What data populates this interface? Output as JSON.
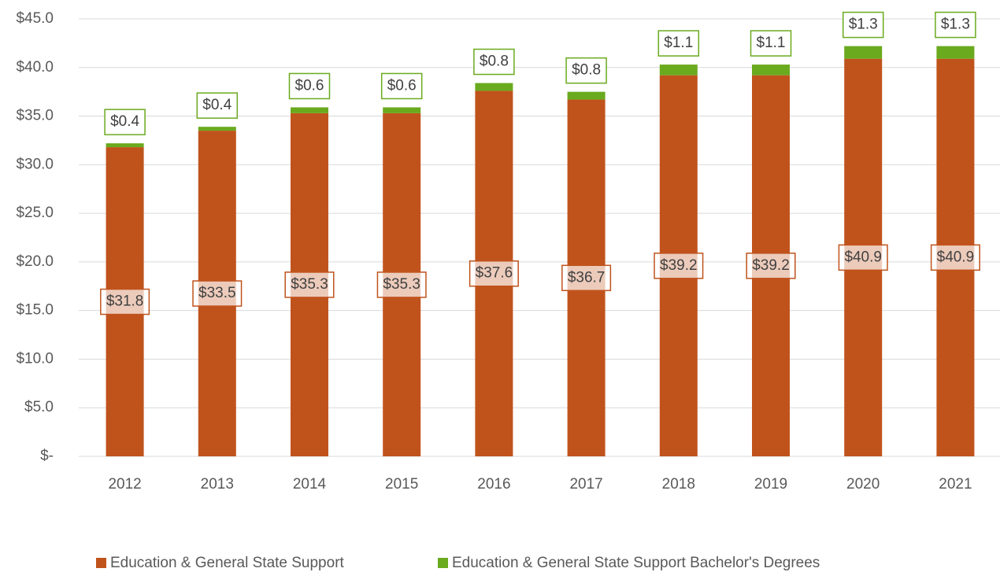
{
  "chart_data": {
    "type": "stacked_bar",
    "categories": [
      "2012",
      "2013",
      "2014",
      "2015",
      "2016",
      "2017",
      "2018",
      "2019",
      "2020",
      "2021"
    ],
    "series": [
      {
        "name": "Education & General State Support",
        "color": "#c0531c",
        "values": [
          31.8,
          33.5,
          35.3,
          35.3,
          37.6,
          36.7,
          39.2,
          39.2,
          40.9,
          40.9
        ],
        "value_labels": [
          "$31.8",
          "$33.5",
          "$35.3",
          "$35.3",
          "$37.6",
          "$36.7",
          "$39.2",
          "$39.2",
          "$40.9",
          "$40.9"
        ]
      },
      {
        "name": "Education & General State Support Bachelor's Degrees",
        "color": "#6aaa1e",
        "values": [
          0.4,
          0.4,
          0.6,
          0.6,
          0.8,
          0.8,
          1.1,
          1.1,
          1.3,
          1.3
        ],
        "value_labels": [
          "$0.4",
          "$0.4",
          "$0.6",
          "$0.6",
          "$0.8",
          "$0.8",
          "$1.1",
          "$1.1",
          "$1.3",
          "$1.3"
        ]
      }
    ],
    "ylim": [
      0,
      45
    ],
    "yticks": [
      {
        "value": 0,
        "label": "$-"
      },
      {
        "value": 5,
        "label": "$5.0"
      },
      {
        "value": 10,
        "label": "$10.0"
      },
      {
        "value": 15,
        "label": "$15.0"
      },
      {
        "value": 20,
        "label": "$20.0"
      },
      {
        "value": 25,
        "label": "$25.0"
      },
      {
        "value": 30,
        "label": "$30.0"
      },
      {
        "value": 35,
        "label": "$35.0"
      },
      {
        "value": 40,
        "label": "$40.0"
      },
      {
        "value": 45,
        "label": "$45.0"
      }
    ],
    "grid": true,
    "legend": "bottom"
  }
}
